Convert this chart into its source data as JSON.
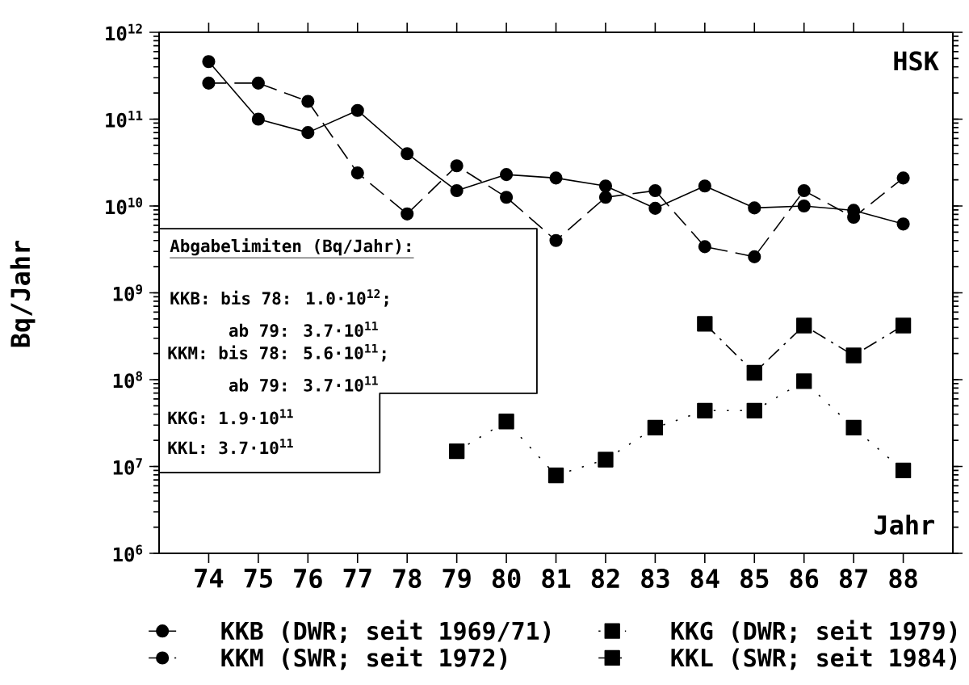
{
  "chart_data": {
    "type": "line",
    "ylabel": "Bq/Jahr",
    "xlabel": "Jahr",
    "log": "y",
    "legend": "bottom",
    "xlim": [
      73,
      89
    ],
    "xticks": [
      74,
      75,
      76,
      77,
      78,
      79,
      80,
      81,
      82,
      83,
      84,
      85,
      86,
      87,
      88
    ],
    "ylim": [
      1000000,
      1000000000000
    ],
    "yticks": [
      {
        "value": 1000000,
        "label": "10$^{6}$"
      },
      {
        "value": 10000000,
        "label": "10$^{7}$"
      },
      {
        "value": 100000000,
        "label": "10$^{8}$"
      },
      {
        "value": 1000000000,
        "label": "10$^{9}$"
      },
      {
        "value": 10000000000,
        "label": "10$^{10}$"
      },
      {
        "value": 100000000000,
        "label": "10$^{11}$"
      },
      {
        "value": 1000000000000,
        "label": "10$^{12}$"
      }
    ],
    "series": [
      {
        "name": "KKB (DWR; seit 1969/71)",
        "color": "#000000",
        "marker": "circle",
        "line_style": "solid",
        "x": [
          74,
          75,
          76,
          77,
          78,
          79,
          80,
          81,
          82,
          83,
          84,
          85,
          86,
          87,
          88
        ],
        "values": [
          460000000000.0,
          100000000000.0,
          70000000000.0,
          126000000000.0,
          40000000000.0,
          15000000000.0,
          23000000000.0,
          21000000000.0,
          17000000000.0,
          9400000000.0,
          17000000000.0,
          9500000000.0,
          10000000000.0,
          8900000000.0,
          6200000000.0
        ]
      },
      {
        "name": "KKM (SWR; seit 1972)",
        "color": "#000000",
        "marker": "circle",
        "line_style": "dashed",
        "x": [
          74,
          75,
          76,
          77,
          78,
          79,
          80,
          81,
          82,
          83,
          84,
          85,
          86,
          87,
          88
        ],
        "values": [
          260000000000.0,
          260000000000.0,
          160000000000.0,
          24000000000.0,
          8100000000.0,
          29000000000.0,
          12600000000.0,
          4000000000.0,
          12600000000.0,
          15000000000.0,
          3400000000.0,
          2600000000.0,
          15000000000.0,
          7400000000.0,
          21000000000.0
        ]
      },
      {
        "name": "KKG (DWR; seit 1979)",
        "color": "#000000",
        "marker": "square",
        "line_style": "dotted",
        "x": [
          79,
          80,
          81,
          82,
          83,
          84,
          85,
          86,
          87,
          88
        ],
        "values": [
          15000000.0,
          33000000.0,
          7900000.0,
          12000000.0,
          28000000.0,
          44000000.0,
          44000000.0,
          96000000.0,
          28000000.0,
          9000000.0
        ]
      },
      {
        "name": "KKL (SWR; seit 1984)",
        "color": "#000000",
        "marker": "square",
        "line_style": "dashdot",
        "x": [
          84,
          85,
          86,
          87,
          88
        ],
        "values": [
          440000000.0,
          120000000.0,
          420000000.0,
          190000000.0,
          420000000.0
        ]
      }
    ],
    "annotations": [
      "HSK",
      "Abgabelimiten (Bq/Jahr):",
      "KKB: bis 78: 1.0·10$^{12}$;",
      "ab 79: 3.7·10$^{11}$",
      "KKM: bis 78: 5.6·10$^{11}$;",
      "ab 79: 3.7·10$^{11}$",
      "KKG: 1.9·10$^{11}$",
      "KKL: 3.7·10$^{11}$"
    ]
  }
}
